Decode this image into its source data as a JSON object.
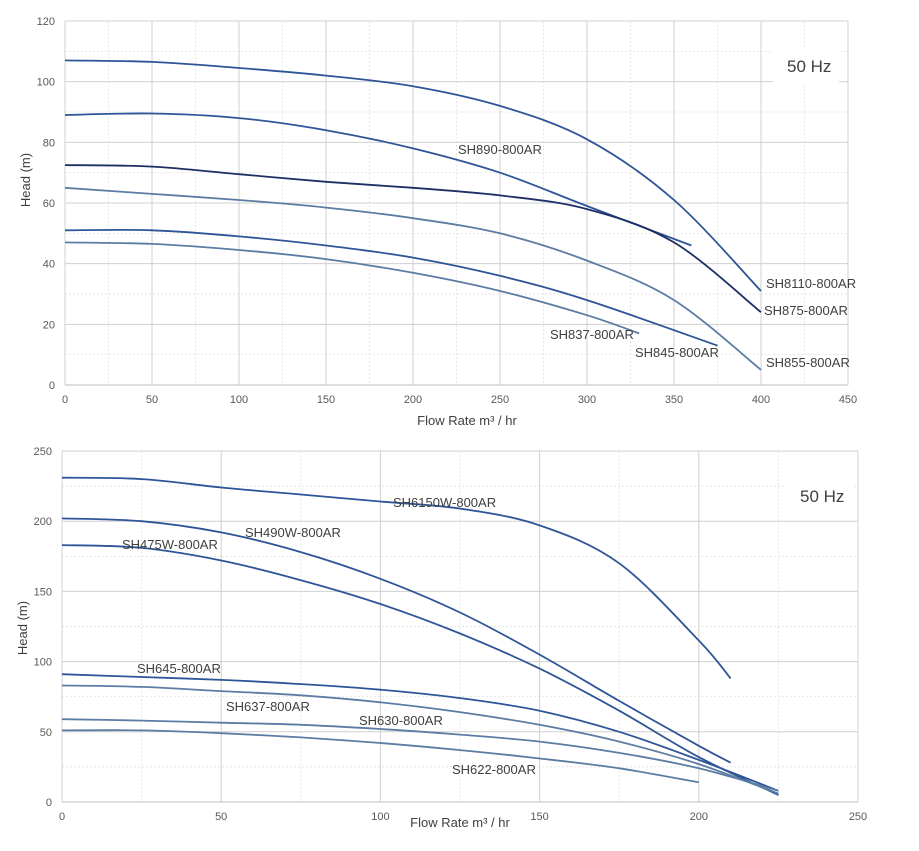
{
  "chart_data": [
    {
      "type": "line",
      "xlabel": "Flow Rate m³ / hr",
      "ylabel": "Head (m)",
      "xlim": [
        0,
        450
      ],
      "ylim": [
        0,
        120
      ],
      "xticks": [
        "0",
        "50",
        "100",
        "150",
        "200",
        "250",
        "300",
        "350",
        "400",
        "450"
      ],
      "yticks": [
        "0",
        "20",
        "40",
        "60",
        "80",
        "100",
        "120"
      ],
      "frequency_label": "50 Hz",
      "grid": true,
      "series": [
        {
          "name": "SH8110-800AR",
          "color": "#2e5597",
          "x": [
            0,
            50,
            100,
            150,
            200,
            250,
            300,
            350,
            400
          ],
          "y": [
            107,
            106.5,
            104.5,
            102,
            98.5,
            92,
            81,
            61,
            31
          ]
        },
        {
          "name": "SH890-800AR",
          "color": "#2e5597",
          "x": [
            0,
            50,
            100,
            150,
            200,
            250,
            300,
            360
          ],
          "y": [
            89,
            89.5,
            88,
            84,
            78,
            70,
            59,
            46
          ]
        },
        {
          "name": "SH875-800AR",
          "color": "#1d2f64",
          "x": [
            0,
            50,
            100,
            150,
            200,
            250,
            300,
            350,
            400
          ],
          "y": [
            72.5,
            72,
            69.5,
            67,
            65,
            62.5,
            58,
            47,
            24
          ]
        },
        {
          "name": "SH855-800AR",
          "color": "#5b7ca3",
          "x": [
            0,
            50,
            100,
            150,
            200,
            250,
            300,
            350,
            400
          ],
          "y": [
            65,
            63,
            61,
            58.5,
            55,
            50,
            41,
            28,
            5
          ]
        },
        {
          "name": "SH845-800AR",
          "color": "#2e5597",
          "x": [
            0,
            50,
            100,
            150,
            200,
            250,
            300,
            375
          ],
          "y": [
            51,
            51,
            49,
            46,
            42,
            36,
            28,
            13
          ]
        },
        {
          "name": "SH837-800AR",
          "color": "#5b7ca3",
          "x": [
            0,
            50,
            100,
            150,
            200,
            250,
            300,
            330
          ],
          "y": [
            47,
            46.5,
            44.5,
            41.5,
            37,
            31,
            23,
            17
          ]
        }
      ]
    },
    {
      "type": "line",
      "xlabel": "Flow Rate m³ / hr",
      "ylabel": "Head (m)",
      "xlim": [
        0,
        250
      ],
      "ylim": [
        0,
        250
      ],
      "xticks": [
        "0",
        "50",
        "100",
        "150",
        "200",
        "250"
      ],
      "yticks": [
        "0",
        "50",
        "100",
        "150",
        "200",
        "250"
      ],
      "frequency_label": "50 Hz",
      "grid": true,
      "series": [
        {
          "name": "SH6150W-800AR",
          "color": "#2e5597",
          "x": [
            0,
            25,
            50,
            75,
            100,
            125,
            150,
            175,
            200,
            210
          ],
          "y": [
            231,
            230,
            224,
            219,
            214,
            209,
            197,
            170,
            115,
            88
          ]
        },
        {
          "name": "SH490W-800AR",
          "color": "#2e5597",
          "x": [
            0,
            25,
            50,
            75,
            100,
            125,
            150,
            175,
            200,
            210
          ],
          "y": [
            202,
            200,
            192,
            178,
            159,
            135,
            105,
            72,
            40,
            28
          ]
        },
        {
          "name": "SH475W-800AR",
          "color": "#2e5597",
          "x": [
            0,
            25,
            50,
            75,
            100,
            125,
            150,
            175,
            200,
            225
          ],
          "y": [
            183,
            181,
            172,
            158,
            141,
            120,
            95,
            65,
            32,
            5
          ]
        },
        {
          "name": "SH645-800AR",
          "color": "#2e5597",
          "x": [
            0,
            25,
            50,
            75,
            100,
            125,
            150,
            175,
            200,
            225
          ],
          "y": [
            91,
            89,
            87,
            84,
            80,
            74,
            65,
            50,
            30,
            8
          ]
        },
        {
          "name": "SH637-800AR",
          "color": "#5b7ca3",
          "x": [
            0,
            25,
            50,
            75,
            100,
            125,
            150,
            175,
            200,
            225
          ],
          "y": [
            83,
            82,
            79,
            76,
            71,
            64,
            55,
            43,
            27,
            6
          ]
        },
        {
          "name": "SH630-800AR",
          "color": "#5b7ca3",
          "x": [
            0,
            25,
            50,
            75,
            100,
            125,
            150,
            175,
            200,
            225
          ],
          "y": [
            59,
            58,
            56.5,
            55,
            52,
            48,
            43,
            35,
            24,
            8
          ]
        },
        {
          "name": "SH622-800AR",
          "color": "#5b7ca3",
          "x": [
            0,
            25,
            50,
            75,
            100,
            125,
            150,
            175,
            200
          ],
          "y": [
            51,
            51,
            49,
            46,
            42,
            37,
            31,
            24,
            14
          ]
        }
      ]
    }
  ]
}
